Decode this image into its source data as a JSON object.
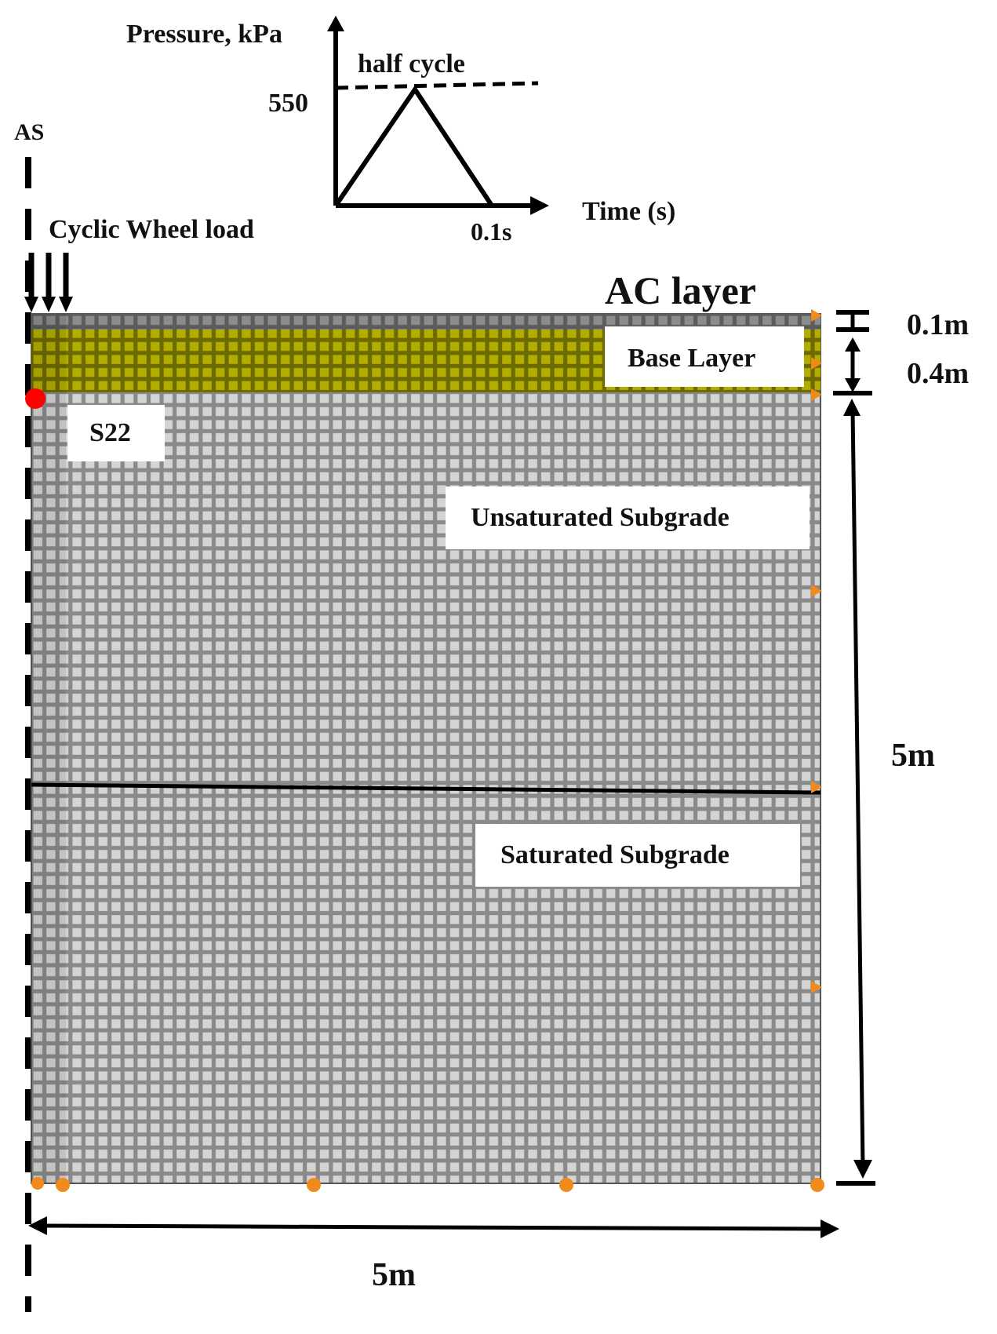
{
  "axis_marker": "AS",
  "load_label": "Cyclic Wheel load",
  "inset": {
    "y_axis_label": "Pressure, kPa",
    "peak_value": "550",
    "curve_label": "half cycle",
    "x_axis_label": "Time (s)",
    "duration_label": "0.1s"
  },
  "layers": {
    "ac": "AC layer",
    "base": "Base Layer",
    "unsaturated": "Unsaturated Subgrade",
    "saturated": "Saturated Subgrade"
  },
  "stress_point_label": "S22",
  "dimensions": {
    "ac_thickness": "0.1m",
    "base_thickness": "0.4m",
    "subgrade_depth": "5m",
    "model_width": "5m"
  },
  "colors": {
    "mesh_fill": "#c8c8c8",
    "mesh_line": "#6e6e6e",
    "ac_fill": "#7a7a7a",
    "base_fill": "#a7a400",
    "stress_point": "#ff0000",
    "boundary_marker": "#f08a1a"
  }
}
